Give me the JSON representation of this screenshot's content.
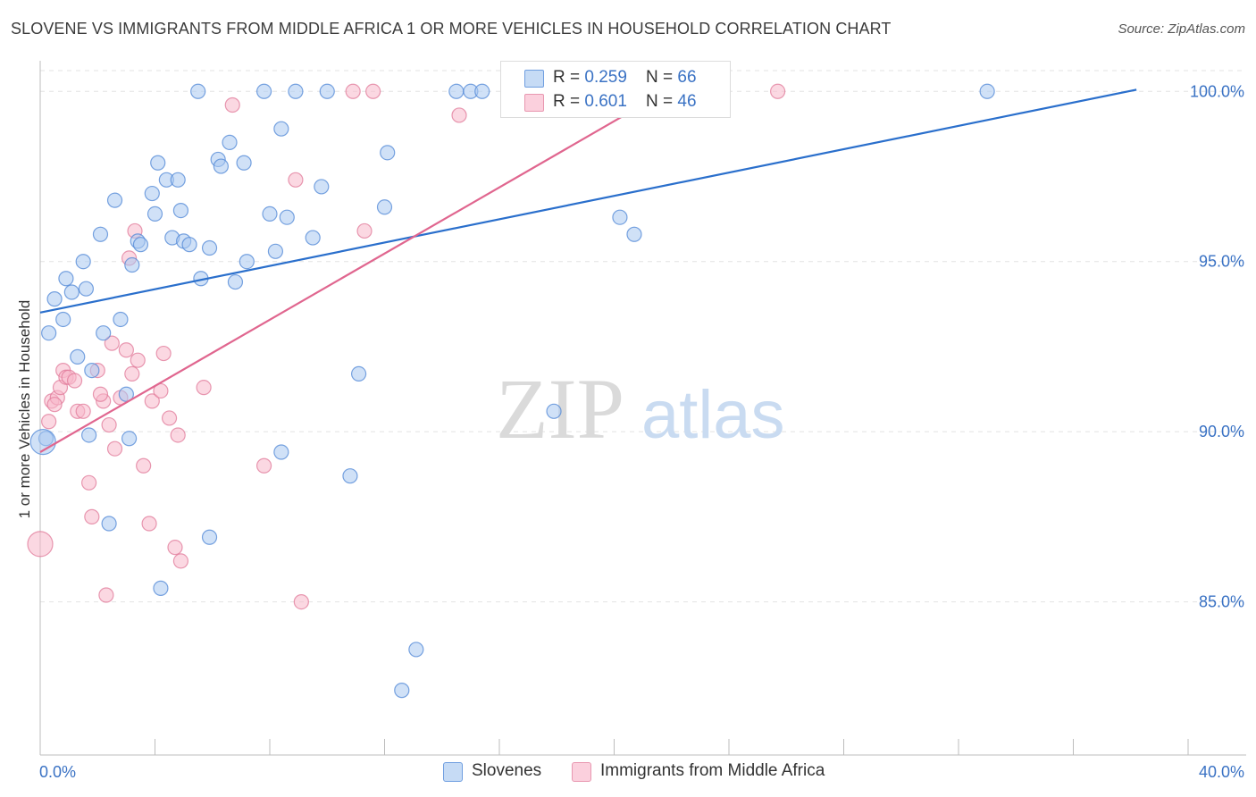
{
  "title": "SLOVENE VS IMMIGRANTS FROM MIDDLE AFRICA 1 OR MORE VEHICLES IN HOUSEHOLD CORRELATION CHART",
  "source": "Source: ZipAtlas.com",
  "watermark": {
    "zip": "ZIP",
    "atlas": "atlas"
  },
  "legend": {
    "rows": [
      {
        "r_label": "R = ",
        "r_value": "0.259",
        "n_label": "N = ",
        "n_value": "66",
        "color": "#a9c8f0"
      },
      {
        "r_label": "R = ",
        "r_value": "0.601",
        "n_label": "N = ",
        "n_value": "46",
        "color": "#f7b8cb"
      }
    ]
  },
  "colors": {
    "blue_fill": "#a9c8f0",
    "blue_stroke": "#4d86d6",
    "blue_line": "#2a6fcc",
    "pink_fill": "#f7b8cb",
    "pink_stroke": "#e07898",
    "pink_line": "#e0668f",
    "tick_label": "#3a72c4",
    "grid": "#e3e3e3"
  },
  "chart_data": {
    "type": "scatter",
    "title": "SLOVENE VS IMMIGRANTS FROM MIDDLE AFRICA 1 OR MORE VEHICLES IN HOUSEHOLD CORRELATION CHART",
    "xlabel": "",
    "ylabel": "1 or more Vehicles in Household",
    "xlim": [
      0,
      40
    ],
    "ylim": [
      80.5,
      100.9
    ],
    "x_tick_labels": [
      "0.0%",
      "40.0%"
    ],
    "y_ticks": [
      100,
      95,
      90,
      85
    ],
    "y_tick_labels": [
      "100.0%",
      "95.0%",
      "90.0%",
      "85.0%"
    ],
    "grid": true,
    "legend_position": "top-center",
    "series": [
      {
        "name": "Slovenes",
        "color": "#a9c8f0",
        "trend": {
          "x": [
            0,
            38.2
          ],
          "y": [
            93.5,
            100.05
          ]
        },
        "points": [
          [
            0.2,
            89.8
          ],
          [
            0.3,
            92.9
          ],
          [
            0.5,
            93.9
          ],
          [
            0.8,
            93.3
          ],
          [
            0.9,
            94.5
          ],
          [
            1.1,
            94.1
          ],
          [
            1.3,
            92.2
          ],
          [
            1.5,
            95.0
          ],
          [
            1.6,
            94.2
          ],
          [
            1.7,
            89.9
          ],
          [
            1.8,
            91.8
          ],
          [
            2.1,
            95.8
          ],
          [
            2.2,
            92.9
          ],
          [
            2.4,
            87.3
          ],
          [
            2.6,
            96.8
          ],
          [
            2.8,
            93.3
          ],
          [
            3.0,
            91.1
          ],
          [
            3.1,
            89.8
          ],
          [
            3.2,
            94.9
          ],
          [
            3.4,
            95.6
          ],
          [
            3.5,
            95.5
          ],
          [
            3.9,
            97.0
          ],
          [
            4.0,
            96.4
          ],
          [
            4.1,
            97.9
          ],
          [
            4.2,
            85.4
          ],
          [
            4.4,
            97.4
          ],
          [
            4.6,
            95.7
          ],
          [
            4.8,
            97.4
          ],
          [
            4.9,
            96.5
          ],
          [
            5.0,
            95.6
          ],
          [
            5.2,
            95.5
          ],
          [
            5.5,
            100.0
          ],
          [
            5.6,
            94.5
          ],
          [
            5.9,
            95.4
          ],
          [
            5.9,
            86.9
          ],
          [
            6.2,
            98.0
          ],
          [
            6.3,
            97.8
          ],
          [
            6.6,
            98.5
          ],
          [
            6.8,
            94.4
          ],
          [
            7.1,
            97.9
          ],
          [
            7.2,
            95.0
          ],
          [
            7.8,
            100.0
          ],
          [
            8.0,
            96.4
          ],
          [
            8.2,
            95.3
          ],
          [
            8.4,
            98.9
          ],
          [
            8.4,
            89.4
          ],
          [
            8.6,
            96.3
          ],
          [
            8.9,
            100.0
          ],
          [
            9.5,
            95.7
          ],
          [
            9.8,
            97.2
          ],
          [
            10.0,
            100.0
          ],
          [
            10.8,
            88.7
          ],
          [
            11.1,
            91.7
          ],
          [
            12.0,
            96.6
          ],
          [
            12.1,
            98.2
          ],
          [
            12.6,
            82.4
          ],
          [
            13.1,
            83.6
          ],
          [
            14.5,
            100.0
          ],
          [
            15.0,
            100.0
          ],
          [
            15.4,
            100.0
          ],
          [
            17.9,
            90.6
          ],
          [
            20.2,
            96.3
          ],
          [
            20.7,
            95.8
          ],
          [
            22.2,
            100.0
          ],
          [
            33.0,
            100.0
          ],
          [
            0.1,
            89.7
          ]
        ]
      },
      {
        "name": "Immigrants from Middle Africa",
        "color": "#f7b8cb",
        "trend": {
          "x": [
            0,
            21.8
          ],
          "y": [
            89.4,
            100.0
          ]
        },
        "points": [
          [
            0.0,
            86.7
          ],
          [
            0.3,
            90.3
          ],
          [
            0.4,
            90.9
          ],
          [
            0.6,
            91.0
          ],
          [
            0.7,
            91.3
          ],
          [
            0.8,
            91.8
          ],
          [
            0.9,
            91.6
          ],
          [
            1.0,
            91.6
          ],
          [
            1.2,
            91.5
          ],
          [
            1.3,
            90.6
          ],
          [
            1.5,
            90.6
          ],
          [
            1.7,
            88.5
          ],
          [
            1.8,
            87.5
          ],
          [
            2.0,
            91.8
          ],
          [
            2.2,
            90.9
          ],
          [
            2.3,
            85.2
          ],
          [
            2.4,
            90.2
          ],
          [
            2.5,
            92.6
          ],
          [
            2.6,
            89.5
          ],
          [
            2.8,
            91.0
          ],
          [
            3.0,
            92.4
          ],
          [
            3.1,
            95.1
          ],
          [
            3.2,
            91.7
          ],
          [
            3.3,
            95.9
          ],
          [
            3.4,
            92.1
          ],
          [
            3.6,
            89.0
          ],
          [
            3.8,
            87.3
          ],
          [
            3.9,
            90.9
          ],
          [
            4.2,
            91.2
          ],
          [
            4.3,
            92.3
          ],
          [
            4.5,
            90.4
          ],
          [
            4.7,
            86.6
          ],
          [
            4.8,
            89.9
          ],
          [
            4.9,
            86.2
          ],
          [
            5.7,
            91.3
          ],
          [
            6.7,
            99.6
          ],
          [
            7.8,
            89.0
          ],
          [
            8.9,
            97.4
          ],
          [
            9.1,
            85.0
          ],
          [
            10.9,
            100.0
          ],
          [
            11.3,
            95.9
          ],
          [
            11.6,
            100.0
          ],
          [
            14.6,
            99.3
          ],
          [
            25.7,
            100.0
          ],
          [
            0.5,
            90.8
          ],
          [
            2.1,
            91.1
          ]
        ]
      }
    ]
  },
  "bottom_legend": {
    "items": [
      {
        "label": "Slovenes",
        "color": "#a9c8f0"
      },
      {
        "label": "Immigrants from Middle Africa",
        "color": "#f7b8cb"
      }
    ]
  }
}
